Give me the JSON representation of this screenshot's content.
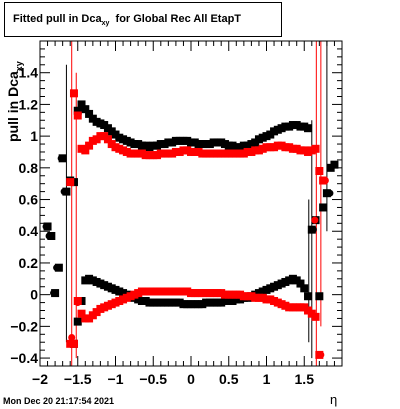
{
  "title": {
    "main": "Fitted pull in Dca",
    "subscript": "xy",
    "suffix": "  for Global Rec All EtapT"
  },
  "timestamp": "Mon Dec 20 21:17:54 2021",
  "chart_data": {
    "type": "scatter",
    "xlabel": "η",
    "ylabel": "pull in Dca",
    "ylabel_sub": "xy",
    "xlim": [
      -2.0,
      2.0
    ],
    "ylim": [
      -0.45,
      1.6
    ],
    "xticks": [
      -2,
      -1.5,
      -1,
      -0.5,
      0,
      0.5,
      1,
      1.5
    ],
    "xtick_labels": [
      "−2",
      "−1.5",
      "−1",
      "−0.5",
      "0",
      "0.5",
      "1",
      "1.5"
    ],
    "yticks": [
      -0.4,
      -0.2,
      0,
      0.2,
      0.4,
      0.6,
      0.8,
      1,
      1.2,
      1.4
    ],
    "ytick_labels": [
      "−0.4",
      "−0.2",
      "0",
      "0.2",
      "0.4",
      "0.6",
      "0.8",
      "1",
      "1.2",
      "1.4"
    ],
    "grid": false,
    "colors": {
      "black_series": "#000000",
      "red_series": "#ff0000"
    },
    "series": [
      {
        "marker": "square",
        "color": "#000000",
        "x": [
          -1.9,
          -1.85,
          -1.8,
          -1.75,
          -1.7,
          -1.65,
          -1.6,
          -1.55,
          -1.5,
          -1.45,
          -1.4,
          -1.35,
          -1.3,
          -1.25,
          -1.2,
          -1.15,
          -1.1,
          -1.05,
          -1.0,
          -0.95,
          -0.9,
          -0.85,
          -0.8,
          -0.75,
          -0.7,
          -0.65,
          -0.6,
          -0.55,
          -0.5,
          -0.45,
          -0.4,
          -0.35,
          -0.3,
          -0.25,
          -0.2,
          -0.15,
          -0.1,
          -0.05,
          0.0,
          0.05,
          0.1,
          0.15,
          0.2,
          0.25,
          0.3,
          0.35,
          0.4,
          0.45,
          0.5,
          0.55,
          0.6,
          0.65,
          0.7,
          0.75,
          0.8,
          0.85,
          0.9,
          0.95,
          1.0,
          1.05,
          1.1,
          1.15,
          1.2,
          1.25,
          1.3,
          1.35,
          1.4,
          1.45,
          1.5,
          1.55,
          1.6,
          1.65,
          1.7,
          1.75,
          1.8,
          1.85,
          1.9
        ],
        "y": [
          0.43,
          0.37,
          0.01,
          0.17,
          0.86,
          0.65,
          0.72,
          0.71,
          1.16,
          1.2,
          1.17,
          1.14,
          1.11,
          1.09,
          1.08,
          1.07,
          1.05,
          1.03,
          1.01,
          0.99,
          0.98,
          0.97,
          0.96,
          0.95,
          0.95,
          0.94,
          0.94,
          0.93,
          0.94,
          0.94,
          0.95,
          0.95,
          0.96,
          0.96,
          0.97,
          0.97,
          0.97,
          0.97,
          0.96,
          0.96,
          0.95,
          0.95,
          0.95,
          0.95,
          0.96,
          0.96,
          0.96,
          0.95,
          0.94,
          0.94,
          0.93,
          0.93,
          0.94,
          0.94,
          0.95,
          0.96,
          0.98,
          0.99,
          1.0,
          1.01,
          1.03,
          1.04,
          1.05,
          1.06,
          1.06,
          1.07,
          1.07,
          1.06,
          1.06,
          1.05,
          0.41,
          0.47,
          -0.01,
          0.55,
          0.64,
          0.8,
          0.82
        ]
      },
      {
        "marker": "square",
        "color": "#000000",
        "x": [
          -1.55,
          -1.5,
          -1.45,
          -1.4,
          -1.35,
          -1.3,
          -1.25,
          -1.2,
          -1.15,
          -1.1,
          -1.05,
          -1.0,
          -0.95,
          -0.9,
          -0.85,
          -0.8,
          -0.75,
          -0.7,
          -0.65,
          -0.6,
          -0.55,
          -0.5,
          -0.45,
          -0.4,
          -0.35,
          -0.3,
          -0.25,
          -0.2,
          -0.15,
          -0.1,
          -0.05,
          0.0,
          0.05,
          0.1,
          0.15,
          0.2,
          0.25,
          0.3,
          0.35,
          0.4,
          0.45,
          0.5,
          0.55,
          0.6,
          0.65,
          0.7,
          0.75,
          0.8,
          0.85,
          0.9,
          0.95,
          1.0,
          1.05,
          1.1,
          1.15,
          1.2,
          1.25,
          1.3,
          1.35,
          1.4,
          1.45,
          1.5,
          1.55
        ],
        "y": [
          -0.31,
          -0.17,
          -0.04,
          0.09,
          0.1,
          0.09,
          0.08,
          0.07,
          0.06,
          0.05,
          0.04,
          0.03,
          0.02,
          0.01,
          0.0,
          -0.01,
          -0.02,
          -0.03,
          -0.04,
          -0.04,
          -0.05,
          -0.05,
          -0.05,
          -0.05,
          -0.05,
          -0.05,
          -0.05,
          -0.05,
          -0.05,
          -0.06,
          -0.06,
          -0.06,
          -0.06,
          -0.06,
          -0.06,
          -0.05,
          -0.05,
          -0.05,
          -0.05,
          -0.05,
          -0.04,
          -0.04,
          -0.04,
          -0.03,
          -0.03,
          -0.02,
          -0.02,
          -0.01,
          0.0,
          0.01,
          0.02,
          0.03,
          0.04,
          0.05,
          0.06,
          0.07,
          0.08,
          0.09,
          0.1,
          0.09,
          0.07,
          0.04,
          -0.01
        ]
      },
      {
        "marker": "square",
        "color": "#ff0000",
        "x": [
          -1.6,
          -1.55,
          -1.5,
          -1.45,
          -1.4,
          -1.35,
          -1.3,
          -1.25,
          -1.2,
          -1.15,
          -1.1,
          -1.05,
          -1.0,
          -0.95,
          -0.9,
          -0.85,
          -0.8,
          -0.75,
          -0.7,
          -0.65,
          -0.6,
          -0.55,
          -0.5,
          -0.45,
          -0.4,
          -0.35,
          -0.3,
          -0.25,
          -0.2,
          -0.15,
          -0.1,
          -0.05,
          0.0,
          0.05,
          0.1,
          0.15,
          0.2,
          0.25,
          0.3,
          0.35,
          0.4,
          0.45,
          0.5,
          0.55,
          0.6,
          0.65,
          0.7,
          0.75,
          0.8,
          0.85,
          0.9,
          0.95,
          1.0,
          1.05,
          1.1,
          1.15,
          1.2,
          1.25,
          1.3,
          1.35,
          1.4,
          1.45,
          1.5,
          1.55,
          1.6,
          1.65,
          1.7,
          1.75
        ],
        "y": [
          0.71,
          1.27,
          1.13,
          0.92,
          0.91,
          0.94,
          0.97,
          0.98,
          1.0,
          1.0,
          0.98,
          0.95,
          0.93,
          0.92,
          0.91,
          0.9,
          0.89,
          0.89,
          0.89,
          0.89,
          0.88,
          0.88,
          0.88,
          0.88,
          0.89,
          0.89,
          0.89,
          0.89,
          0.9,
          0.9,
          0.91,
          0.91,
          0.9,
          0.9,
          0.9,
          0.89,
          0.89,
          0.89,
          0.89,
          0.89,
          0.89,
          0.89,
          0.89,
          0.89,
          0.89,
          0.89,
          0.89,
          0.9,
          0.9,
          0.91,
          0.91,
          0.92,
          0.93,
          0.93,
          0.93,
          0.94,
          0.94,
          0.93,
          0.93,
          0.92,
          0.92,
          0.91,
          0.91,
          0.9,
          0.91,
          0.92,
          0.78,
          0.72
        ]
      },
      {
        "marker": "square",
        "color": "#ff0000",
        "x": [
          -1.6,
          -1.55,
          -1.5,
          -1.45,
          -1.4,
          -1.35,
          -1.3,
          -1.25,
          -1.2,
          -1.15,
          -1.1,
          -1.05,
          -1.0,
          -0.95,
          -0.9,
          -0.85,
          -0.8,
          -0.75,
          -0.7,
          -0.65,
          -0.6,
          -0.55,
          -0.5,
          -0.45,
          -0.4,
          -0.35,
          -0.3,
          -0.25,
          -0.2,
          -0.15,
          -0.1,
          -0.05,
          0.0,
          0.05,
          0.1,
          0.15,
          0.2,
          0.25,
          0.3,
          0.35,
          0.4,
          0.45,
          0.5,
          0.55,
          0.6,
          0.65,
          0.7,
          0.75,
          0.8,
          0.85,
          0.9,
          0.95,
          1.0,
          1.05,
          1.1,
          1.15,
          1.2,
          1.25,
          1.3,
          1.35,
          1.4,
          1.45,
          1.5,
          1.55,
          1.6,
          1.65,
          1.7
        ],
        "y": [
          -0.31,
          -0.31,
          -0.04,
          -0.12,
          -0.15,
          -0.15,
          -0.13,
          -0.11,
          -0.09,
          -0.08,
          -0.07,
          -0.06,
          -0.05,
          -0.04,
          -0.03,
          -0.02,
          -0.01,
          0.0,
          0.01,
          0.02,
          0.02,
          0.02,
          0.02,
          0.02,
          0.02,
          0.02,
          0.02,
          0.02,
          0.02,
          0.02,
          0.02,
          0.02,
          0.01,
          0.01,
          0.01,
          0.01,
          0.01,
          0.01,
          0.01,
          0.01,
          0.01,
          0.0,
          0.0,
          0.0,
          0.0,
          0.0,
          -0.01,
          -0.01,
          -0.01,
          -0.02,
          -0.02,
          -0.02,
          -0.03,
          -0.03,
          -0.04,
          -0.05,
          -0.06,
          -0.07,
          -0.08,
          -0.08,
          -0.08,
          -0.08,
          -0.08,
          -0.1,
          -0.12,
          -0.14,
          -0.38
        ]
      }
    ],
    "error_bars": [
      {
        "x": -1.65,
        "y_low": -0.3,
        "y_high": 1.45,
        "color": "#000000"
      },
      {
        "x": -1.58,
        "y_low": -0.45,
        "y_high": 1.6,
        "color": "#ff0000"
      },
      {
        "x": -1.52,
        "y_low": -0.4,
        "y_high": 1.4,
        "color": "#ff0000"
      },
      {
        "x": 1.56,
        "y_low": -0.3,
        "y_high": 0.6,
        "color": "#000000"
      },
      {
        "x": 1.6,
        "y_low": -0.4,
        "y_high": 1.1,
        "color": "#000000"
      },
      {
        "x": 1.66,
        "y_low": -0.45,
        "y_high": 1.6,
        "color": "#ff0000"
      },
      {
        "x": 1.72,
        "y_low": -0.2,
        "y_high": 1.6,
        "color": "#ff0000"
      },
      {
        "x": 1.8,
        "y_low": 0.4,
        "y_high": 1.6,
        "color": "#000000"
      }
    ]
  }
}
